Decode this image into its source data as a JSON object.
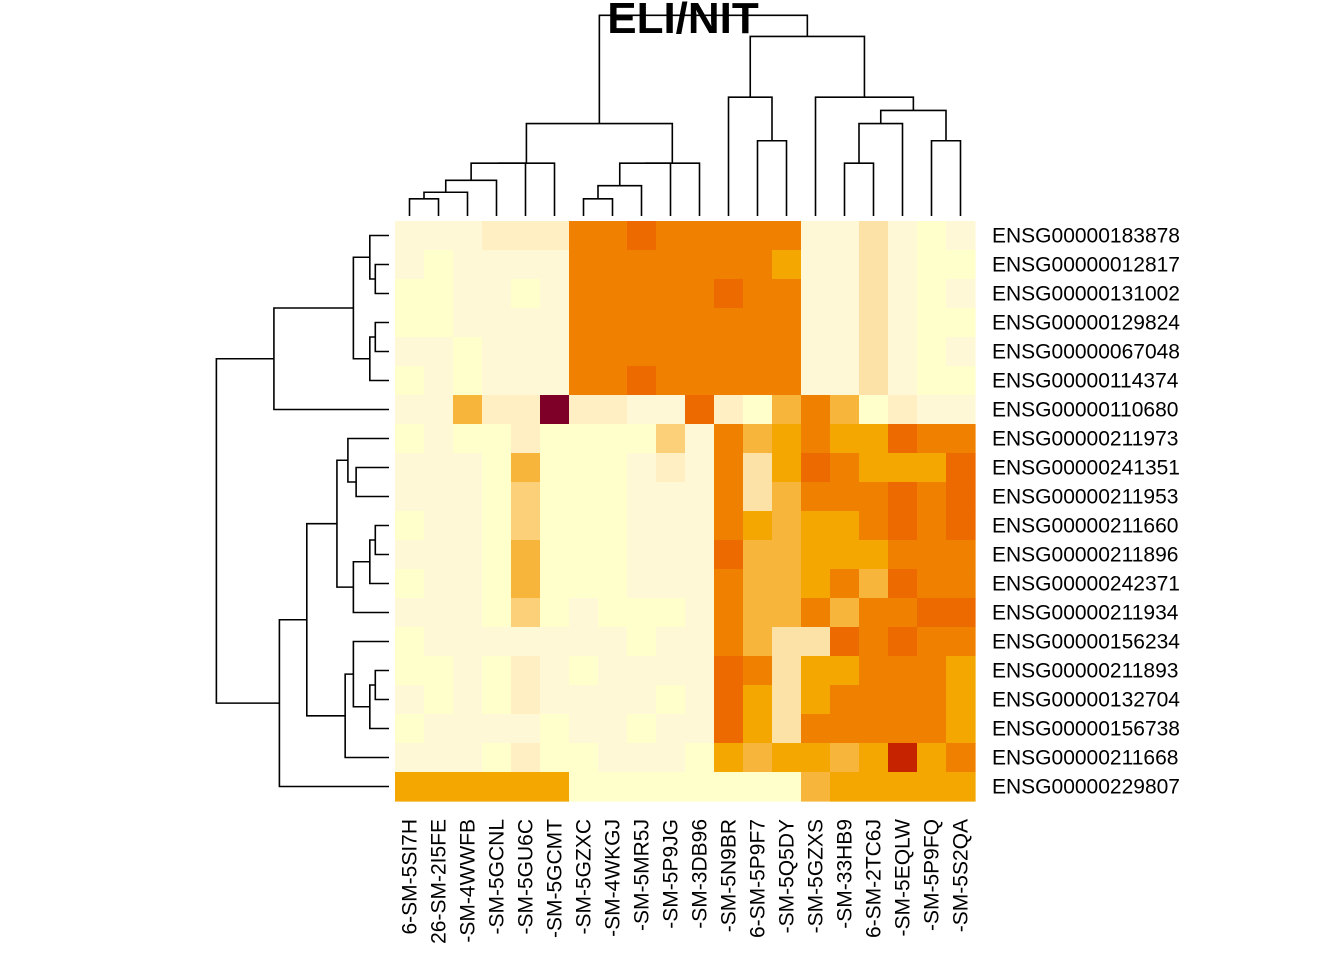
{
  "chart_data": {
    "type": "heatmap",
    "title": "ELI/NIT",
    "row_labels": [
      "ENSG00000183878",
      "ENSG00000012817",
      "ENSG00000131002",
      "ENSG00000129824",
      "ENSG00000067048",
      "ENSG00000114374",
      "ENSG00000110680",
      "ENSG00000211973",
      "ENSG00000241351",
      "ENSG00000211953",
      "ENSG00000211660",
      "ENSG00000211896",
      "ENSG00000242371",
      "ENSG00000211934",
      "ENSG00000156234",
      "ENSG00000211893",
      "ENSG00000132704",
      "ENSG00000156738",
      "ENSG00000211668",
      "ENSG00000229807"
    ],
    "col_labels": [
      "6-SM-5SI7H",
      "26-SM-2I5FE",
      "-SM-4WWFB",
      "-SM-5GCNL",
      "-SM-5GU6C",
      "-SM-5GCMT",
      "-SM-5GZXC",
      "-SM-4WKGJ",
      "-SM-5MR5J",
      "-SM-5P9JG",
      "-SM-3DB96",
      "-SM-5N9BR",
      "6-SM-5P9F7",
      "-SM-5Q5DY",
      "-SM-5GZXS",
      "-SM-33HB9",
      "6-SM-2TC6J",
      "-SM-5EQLW",
      "-SM-5P9FQ",
      "-SM-5S2QA"
    ],
    "color_scale": [
      "#FFFFCC",
      "#FFF8D6",
      "#FFEFC2",
      "#FCE2A6",
      "#FFE0A6",
      "#FCD079",
      "#F7B53C",
      "#F4A700",
      "#F08000",
      "#EC6A00",
      "#C62400",
      "#7E0028"
    ],
    "values": [
      [
        1,
        1,
        1,
        2,
        2,
        2,
        8,
        8,
        9,
        8,
        8,
        8,
        8,
        8,
        1,
        1,
        3,
        1,
        0,
        1
      ],
      [
        1,
        0,
        1,
        1,
        1,
        1,
        8,
        8,
        8,
        8,
        8,
        8,
        8,
        7,
        1,
        1,
        3,
        1,
        0,
        0
      ],
      [
        0,
        0,
        1,
        1,
        0,
        1,
        8,
        8,
        8,
        8,
        8,
        9,
        8,
        8,
        1,
        1,
        3,
        1,
        0,
        1
      ],
      [
        0,
        0,
        1,
        1,
        1,
        1,
        8,
        8,
        8,
        8,
        8,
        8,
        8,
        8,
        1,
        1,
        3,
        1,
        0,
        0
      ],
      [
        1,
        1,
        0,
        1,
        1,
        1,
        8,
        8,
        8,
        8,
        8,
        8,
        8,
        8,
        1,
        1,
        3,
        1,
        0,
        1
      ],
      [
        0,
        1,
        0,
        1,
        1,
        1,
        8,
        8,
        9,
        8,
        8,
        8,
        8,
        8,
        1,
        1,
        3,
        1,
        0,
        0
      ],
      [
        1,
        1,
        6,
        2,
        2,
        11,
        2,
        2,
        1,
        1,
        9,
        2,
        0,
        6,
        8,
        6,
        0,
        2,
        1,
        1
      ],
      [
        0,
        1,
        0,
        0,
        2,
        0,
        0,
        0,
        0,
        5,
        1,
        8,
        6,
        7,
        8,
        7,
        7,
        9,
        8,
        8
      ],
      [
        1,
        1,
        1,
        0,
        6,
        0,
        0,
        0,
        1,
        2,
        1,
        8,
        3,
        7,
        9,
        8,
        7,
        7,
        7,
        9
      ],
      [
        1,
        1,
        1,
        0,
        5,
        0,
        0,
        0,
        1,
        1,
        1,
        8,
        3,
        6,
        8,
        8,
        8,
        9,
        8,
        9
      ],
      [
        0,
        1,
        1,
        0,
        5,
        0,
        0,
        0,
        1,
        1,
        1,
        8,
        7,
        6,
        7,
        7,
        8,
        9,
        8,
        9
      ],
      [
        1,
        1,
        1,
        0,
        6,
        0,
        0,
        0,
        1,
        1,
        1,
        9,
        6,
        6,
        7,
        7,
        7,
        8,
        8,
        8
      ],
      [
        0,
        1,
        1,
        0,
        6,
        0,
        0,
        0,
        1,
        1,
        1,
        8,
        6,
        6,
        7,
        8,
        6,
        9,
        8,
        8
      ],
      [
        1,
        1,
        1,
        0,
        5,
        0,
        1,
        0,
        0,
        0,
        1,
        8,
        6,
        6,
        8,
        6,
        8,
        8,
        9,
        9
      ],
      [
        0,
        1,
        1,
        1,
        1,
        1,
        1,
        1,
        0,
        1,
        1,
        8,
        6,
        3,
        3,
        9,
        8,
        9,
        8,
        8
      ],
      [
        0,
        0,
        1,
        0,
        2,
        1,
        0,
        1,
        1,
        1,
        1,
        9,
        8,
        3,
        7,
        7,
        8,
        8,
        8,
        7
      ],
      [
        1,
        0,
        1,
        0,
        2,
        1,
        1,
        1,
        1,
        0,
        1,
        9,
        7,
        3,
        7,
        8,
        8,
        8,
        8,
        7
      ],
      [
        0,
        1,
        1,
        1,
        1,
        0,
        1,
        1,
        0,
        1,
        1,
        9,
        7,
        3,
        8,
        8,
        8,
        8,
        8,
        7
      ],
      [
        1,
        1,
        1,
        0,
        2,
        0,
        0,
        1,
        1,
        1,
        0,
        7,
        6,
        7,
        7,
        6,
        7,
        10,
        7,
        8
      ],
      [
        7,
        7,
        7,
        7,
        7,
        7,
        0,
        0,
        0,
        0,
        0,
        0,
        0,
        0,
        6,
        7,
        7,
        7,
        7,
        7
      ]
    ],
    "column_dendrogram": [
      [
        0,
        1,
        0.13
      ],
      [
        20,
        2,
        0.18
      ],
      [
        21,
        3,
        0.27
      ],
      [
        22,
        4,
        0.4
      ],
      [
        23,
        5,
        0.4
      ],
      [
        6,
        7,
        0.13
      ],
      [
        25,
        8,
        0.23
      ],
      [
        26,
        9,
        0.4
      ],
      [
        27,
        10,
        0.4
      ],
      [
        24,
        28,
        0.7
      ],
      [
        12,
        13,
        0.57
      ],
      [
        11,
        30,
        0.9
      ],
      [
        15,
        16,
        0.4
      ],
      [
        32,
        17,
        0.7
      ],
      [
        18,
        19,
        0.57
      ],
      [
        33,
        34,
        0.8
      ],
      [
        14,
        35,
        0.9
      ],
      [
        31,
        36,
        1.36
      ],
      [
        29,
        37,
        1.52
      ],
      [
        38,
        38,
        -1
      ]
    ],
    "row_dendrogram": [
      [
        1,
        2,
        0.05
      ],
      [
        0,
        20,
        0.07
      ],
      [
        3,
        4,
        0.05
      ],
      [
        22,
        5,
        0.07
      ],
      [
        21,
        23,
        0.13
      ],
      [
        24,
        6,
        0.42
      ],
      [
        10,
        11,
        0.05
      ],
      [
        26,
        12,
        0.07
      ],
      [
        27,
        13,
        0.13
      ],
      [
        8,
        9,
        0.12
      ],
      [
        7,
        29,
        0.15
      ],
      [
        28,
        30,
        0.19
      ],
      [
        15,
        16,
        0.05
      ],
      [
        32,
        17,
        0.07
      ],
      [
        14,
        33,
        0.13
      ],
      [
        34,
        18,
        0.16
      ],
      [
        31,
        35,
        0.3
      ],
      [
        36,
        19,
        0.4
      ],
      [
        25,
        37,
        0.63
      ]
    ]
  }
}
